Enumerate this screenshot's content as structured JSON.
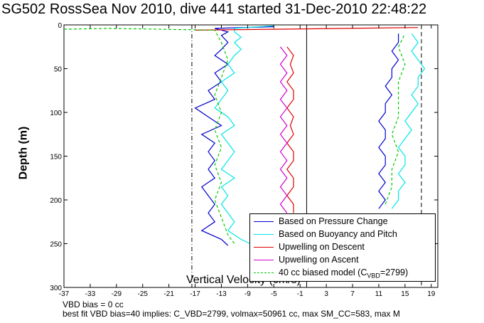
{
  "title": "SG502 RossSea Nov 2010, dive 441 started 31-Dec-2010 22:48:22",
  "notes": {
    "vbd_bias": "VBD bias = 0 cc",
    "best_fit": "best fit VBD bias=40 implies: C_VBD=2799, volmax=50961 cc, max SM_CC=583, max M"
  },
  "colors": {
    "pressure": "#0000cc",
    "buoyancy": "#00e5e5",
    "upwelling_descent": "#e00000",
    "upwelling_ascent": "#d000d0",
    "biased_model": "#00cc00"
  },
  "legend": {
    "placement": "lower-right",
    "items": [
      {
        "label": "Based on Pressure Change",
        "color": "#0000cc",
        "dash": "solid"
      },
      {
        "label": "Based on Buoyancy and Pitch",
        "color": "#00e5e5",
        "dash": "solid"
      },
      {
        "label": "Upwelling on Descent",
        "color": "#e00000",
        "dash": "solid"
      },
      {
        "label": "Upwelling on Ascent",
        "color": "#d000d0",
        "dash": "solid"
      },
      {
        "label": "40 cc biased model (C_VBD=2799)",
        "color": "#00cc00",
        "dash": "dashed",
        "prefix": "40 cc biased model (C",
        "sub": "VBD",
        "suffix": "=2799)"
      }
    ]
  },
  "chart_data": {
    "type": "line",
    "title": "SG502 RossSea Nov 2010, dive 441 started 31-Dec-2010 22:48:22",
    "xlabel": "Vertical Velocity (cm/s)",
    "ylabel": "Depth (m)",
    "xlim": [
      -37,
      20
    ],
    "ylim": [
      0,
      300
    ],
    "y_reversed": true,
    "grid": false,
    "x_ticks": [
      -37,
      -33,
      -29,
      -25,
      -21,
      -17,
      -13,
      -9,
      -5,
      -1,
      3,
      7,
      11,
      15,
      19
    ],
    "y_ticks": [
      0,
      50,
      100,
      150,
      200,
      250,
      300
    ],
    "vertical_reference_lines": [
      {
        "x": -17.5,
        "style": "dash-dot"
      },
      {
        "x": 0,
        "style": "solid"
      },
      {
        "x": 17.5,
        "style": "dashed"
      }
    ],
    "series": [
      {
        "name": "Based on Pressure Change",
        "group": "descent",
        "color": "#0000cc",
        "points": [
          [
            -5,
            2
          ],
          [
            -14,
            4
          ],
          [
            -12,
            8
          ],
          [
            -13,
            12
          ],
          [
            -12,
            20
          ],
          [
            -13,
            28
          ],
          [
            -14,
            35
          ],
          [
            -12,
            45
          ],
          [
            -14,
            55
          ],
          [
            -13,
            65
          ],
          [
            -15,
            75
          ],
          [
            -14,
            85
          ],
          [
            -17,
            95
          ],
          [
            -15,
            105
          ],
          [
            -13,
            115
          ],
          [
            -16,
            125
          ],
          [
            -14,
            135
          ],
          [
            -15,
            145
          ],
          [
            -14,
            155
          ],
          [
            -15,
            165
          ],
          [
            -14,
            175
          ],
          [
            -16,
            185
          ],
          [
            -15,
            195
          ],
          [
            -14,
            205
          ],
          [
            -15,
            215
          ],
          [
            -14,
            225
          ],
          [
            -16,
            235
          ],
          [
            -13,
            245
          ],
          [
            -12,
            252
          ]
        ]
      },
      {
        "name": "Based on Buoyancy and Pitch",
        "group": "descent",
        "color": "#00e5e5",
        "points": [
          [
            -5,
            1
          ],
          [
            -11,
            4
          ],
          [
            -11,
            8
          ],
          [
            -10,
            14
          ],
          [
            -11,
            20
          ],
          [
            -10,
            28
          ],
          [
            -11,
            35
          ],
          [
            -12,
            45
          ],
          [
            -11,
            55
          ],
          [
            -13,
            65
          ],
          [
            -12,
            75
          ],
          [
            -13,
            85
          ],
          [
            -14,
            95
          ],
          [
            -12,
            105
          ],
          [
            -11,
            115
          ],
          [
            -13,
            125
          ],
          [
            -12,
            135
          ],
          [
            -11,
            145
          ],
          [
            -12,
            155
          ],
          [
            -13,
            165
          ],
          [
            -11,
            175
          ],
          [
            -13,
            185
          ],
          [
            -12,
            195
          ],
          [
            -13,
            205
          ],
          [
            -12,
            215
          ],
          [
            -11,
            225
          ],
          [
            -12,
            235
          ],
          [
            -10,
            245
          ],
          [
            -8,
            252
          ]
        ]
      },
      {
        "name": "Upwelling on Descent",
        "group": "upwelling",
        "color": "#e00000",
        "points": [
          [
            -3,
            25
          ],
          [
            -2,
            35
          ],
          [
            -2.5,
            45
          ],
          [
            -2,
            55
          ],
          [
            -3,
            65
          ],
          [
            -2,
            75
          ],
          [
            -2,
            85
          ],
          [
            -3,
            95
          ],
          [
            -2,
            105
          ],
          [
            -2.5,
            115
          ],
          [
            -2,
            125
          ],
          [
            -3,
            135
          ],
          [
            -2,
            145
          ],
          [
            -2,
            155
          ],
          [
            -3,
            165
          ],
          [
            -2,
            175
          ],
          [
            -2,
            185
          ],
          [
            -3,
            195
          ],
          [
            -2,
            205
          ],
          [
            -2,
            215
          ]
        ]
      },
      {
        "name": "Upwelling on Ascent",
        "group": "upwelling",
        "color": "#d000d0",
        "points": [
          [
            -4,
            25
          ],
          [
            -3,
            35
          ],
          [
            -4,
            45
          ],
          [
            -3,
            55
          ],
          [
            -4,
            65
          ],
          [
            -3,
            75
          ],
          [
            -4,
            85
          ],
          [
            -3,
            95
          ],
          [
            -4,
            105
          ],
          [
            -3,
            115
          ],
          [
            -4,
            125
          ],
          [
            -3,
            135
          ],
          [
            -4,
            145
          ],
          [
            -3,
            155
          ],
          [
            -4,
            165
          ],
          [
            -3,
            175
          ],
          [
            -4,
            185
          ],
          [
            -3,
            195
          ],
          [
            -4,
            205
          ],
          [
            -3,
            215
          ]
        ]
      },
      {
        "name": "Based on Pressure Change",
        "group": "ascent",
        "color": "#0000cc",
        "points": [
          [
            11,
            210
          ],
          [
            12,
            200
          ],
          [
            11,
            190
          ],
          [
            12,
            180
          ],
          [
            11,
            170
          ],
          [
            12,
            160
          ],
          [
            12,
            150
          ],
          [
            11,
            140
          ],
          [
            12,
            130
          ],
          [
            12,
            120
          ],
          [
            11,
            110
          ],
          [
            12,
            100
          ],
          [
            12,
            90
          ],
          [
            13,
            80
          ],
          [
            12,
            70
          ],
          [
            13,
            60
          ],
          [
            13,
            50
          ],
          [
            14,
            40
          ],
          [
            13,
            30
          ],
          [
            14,
            20
          ],
          [
            14,
            10
          ]
        ]
      },
      {
        "name": "Based on Buoyancy and Pitch",
        "group": "ascent",
        "color": "#00e5e5",
        "points": [
          [
            13,
            210
          ],
          [
            14,
            200
          ],
          [
            14,
            190
          ],
          [
            15,
            180
          ],
          [
            14,
            170
          ],
          [
            15,
            160
          ],
          [
            15,
            150
          ],
          [
            14,
            140
          ],
          [
            15,
            130
          ],
          [
            16,
            120
          ],
          [
            15,
            110
          ],
          [
            16,
            100
          ],
          [
            17,
            90
          ],
          [
            16,
            80
          ],
          [
            17,
            70
          ],
          [
            17,
            60
          ],
          [
            18,
            50
          ],
          [
            17,
            40
          ],
          [
            16,
            30
          ],
          [
            17,
            20
          ],
          [
            16,
            10
          ]
        ]
      },
      {
        "name": "Upwelling on Descent",
        "group": "surface",
        "color": "#e00000",
        "points": [
          [
            -17,
            6
          ],
          [
            -5,
            5
          ],
          [
            17,
            3
          ]
        ]
      },
      {
        "name": "40 cc biased model (C_VBD=2799)",
        "group": "model",
        "color": "#00cc00",
        "dashed": true,
        "points": [
          [
            -37,
            5
          ],
          [
            -30,
            4
          ],
          [
            -14,
            6
          ],
          [
            -13,
            20
          ],
          [
            -12,
            40
          ],
          [
            -13,
            60
          ],
          [
            -14,
            80
          ],
          [
            -13,
            100
          ],
          [
            -14,
            120
          ],
          [
            -13,
            140
          ],
          [
            -14,
            160
          ],
          [
            -13,
            180
          ],
          [
            -14,
            200
          ],
          [
            -13,
            220
          ],
          [
            -12,
            240
          ],
          [
            -11,
            250
          ]
        ]
      },
      {
        "name": "40 cc biased model (C_VBD=2799)",
        "group": "model-ascent",
        "color": "#00cc00",
        "dashed": true,
        "points": [
          [
            12,
            205
          ],
          [
            13,
            185
          ],
          [
            13,
            165
          ],
          [
            14,
            145
          ],
          [
            13,
            125
          ],
          [
            14,
            105
          ],
          [
            14,
            85
          ],
          [
            14,
            65
          ],
          [
            15,
            45
          ],
          [
            14,
            25
          ],
          [
            15,
            10
          ]
        ]
      }
    ]
  }
}
